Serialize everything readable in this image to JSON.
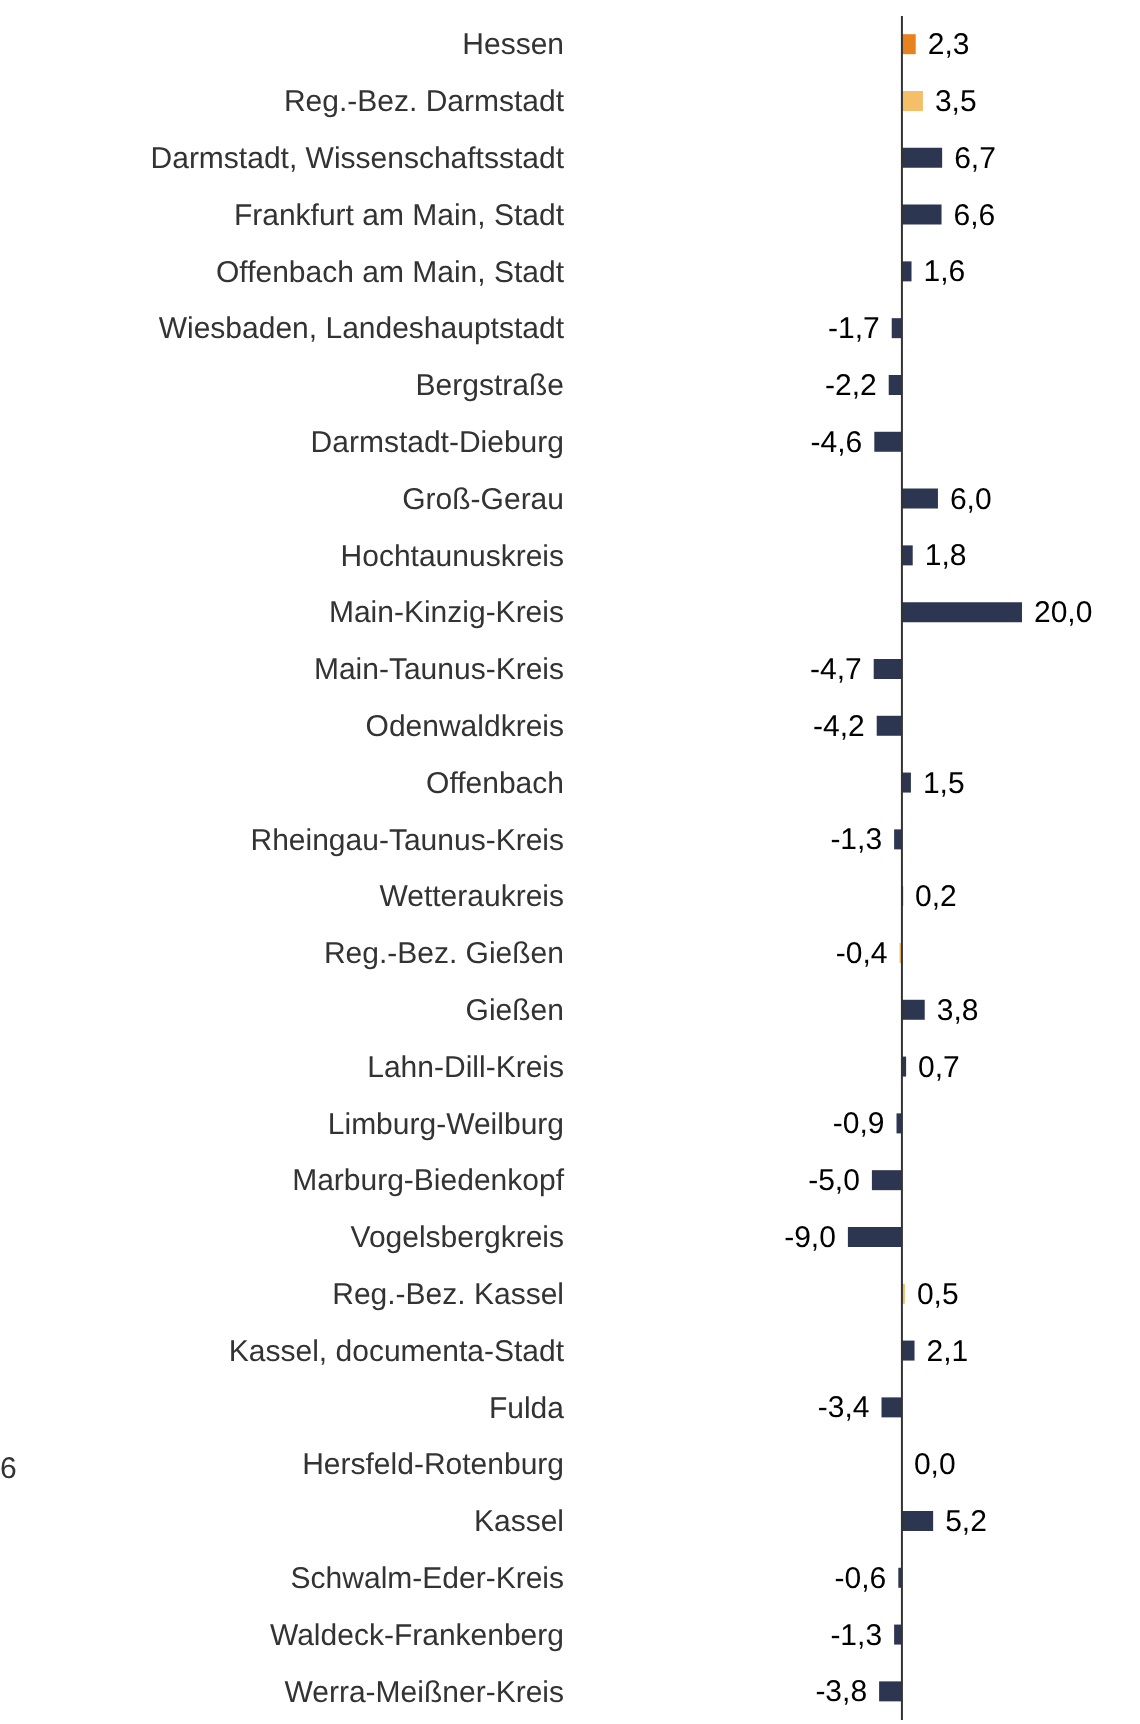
{
  "chart_data": {
    "type": "bar",
    "orientation": "horizontal",
    "categories": [
      "Hessen",
      "Reg.-Bez. Darmstadt",
      "Darmstadt, Wissenschaftsstadt",
      "Frankfurt am Main, Stadt",
      "Offenbach am Main, Stadt",
      "Wiesbaden, Landeshauptstadt",
      "Bergstraße",
      "Darmstadt-Dieburg",
      "Groß-Gerau",
      "Hochtaunuskreis",
      "Main-Kinzig-Kreis",
      "Main-Taunus-Kreis",
      "Odenwaldkreis",
      "Offenbach",
      "Rheingau-Taunus-Kreis",
      "Wetteraukreis",
      "Reg.-Bez. Gießen",
      "Gießen",
      "Lahn-Dill-Kreis",
      "Limburg-Weilburg",
      "Marburg-Biedenkopf",
      "Vogelsbergkreis",
      "Reg.-Bez. Kassel",
      "Kassel, documenta-Stadt",
      "Fulda",
      "Hersfeld-Rotenburg",
      "Kassel",
      "Schwalm-Eder-Kreis",
      "Waldeck-Frankenberg",
      "Werra-Meißner-Kreis"
    ],
    "values": [
      2.3,
      3.5,
      6.7,
      6.6,
      1.6,
      -1.7,
      -2.2,
      -4.6,
      6.0,
      1.8,
      20.0,
      -4.7,
      -4.2,
      1.5,
      -1.3,
      0.2,
      -0.4,
      3.8,
      0.7,
      -0.9,
      -5.0,
      -9.0,
      0.5,
      2.1,
      -3.4,
      0.0,
      5.2,
      -0.6,
      -1.3,
      -3.8
    ],
    "value_labels": [
      "2,3",
      "3,5",
      "6,7",
      "6,6",
      "1,6",
      "-1,7",
      "-2,2",
      "-4,6",
      "6,0",
      "1,8",
      "20,0",
      "-4,7",
      "-4,2",
      "1,5",
      "-1,3",
      "0,2",
      "-0,4",
      "3,8",
      "0,7",
      "-0,9",
      "-5,0",
      "-9,0",
      "0,5",
      "2,1",
      "-3,4",
      "0,0",
      "5,2",
      "-0,6",
      "-1,3",
      "-3,8"
    ],
    "colors": [
      "#e8821e",
      "#f5bf6a",
      "#2d3650",
      "#2d3650",
      "#2d3650",
      "#2d3650",
      "#2d3650",
      "#2d3650",
      "#2d3650",
      "#2d3650",
      "#2d3650",
      "#2d3650",
      "#2d3650",
      "#2d3650",
      "#2d3650",
      "#2d3650",
      "#f5bf6a",
      "#2d3650",
      "#2d3650",
      "#2d3650",
      "#2d3650",
      "#2d3650",
      "#f5bf6a",
      "#2d3650",
      "#2d3650",
      "#2d3650",
      "#2d3650",
      "#2d3650",
      "#2d3650",
      "#2d3650"
    ],
    "annotations": [
      "6"
    ],
    "grid": false,
    "legend": false
  }
}
